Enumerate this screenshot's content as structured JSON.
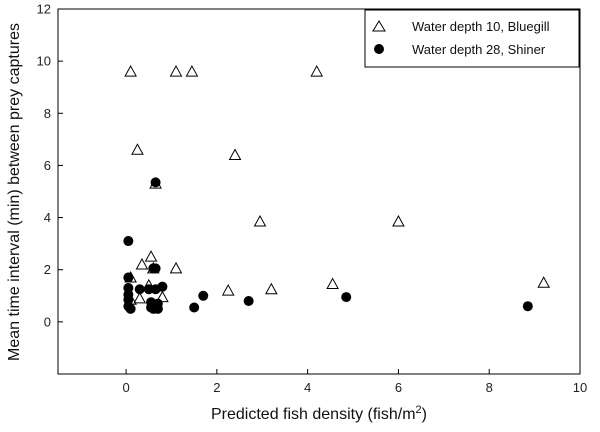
{
  "chart_data": {
    "type": "scatter",
    "title": "",
    "xlabel": "Predicted fish density (fish/m",
    "xlabel_sup": "2",
    "xlabel_close": ")",
    "ylabel": "Mean time interval (min) between prey captures",
    "xlim": [
      -1.5,
      10
    ],
    "ylim": [
      -2,
      12
    ],
    "xticks": [
      0,
      2,
      4,
      6,
      8,
      10
    ],
    "yticks": [
      0,
      2,
      4,
      6,
      8,
      10,
      12
    ],
    "grid": false,
    "legend_position": "top-right",
    "series": [
      {
        "name": "Water depth 10, Bluegill",
        "marker": "open-triangle",
        "color": "#000000",
        "points": [
          [
            0.1,
            9.6
          ],
          [
            1.1,
            9.6
          ],
          [
            1.45,
            9.6
          ],
          [
            4.2,
            9.6
          ],
          [
            0.25,
            6.6
          ],
          [
            2.4,
            6.4
          ],
          [
            0.65,
            5.3
          ],
          [
            2.95,
            3.85
          ],
          [
            6.0,
            3.85
          ],
          [
            0.55,
            2.5
          ],
          [
            0.35,
            2.2
          ],
          [
            0.6,
            2.05
          ],
          [
            1.1,
            2.05
          ],
          [
            0.1,
            1.7
          ],
          [
            0.5,
            1.4
          ],
          [
            4.55,
            1.45
          ],
          [
            9.2,
            1.5
          ],
          [
            2.25,
            1.2
          ],
          [
            3.2,
            1.25
          ],
          [
            0.8,
            0.95
          ],
          [
            0.3,
            0.9
          ],
          [
            0.1,
            0.85
          ]
        ]
      },
      {
        "name": "Water depth 28, Shiner",
        "marker": "filled-circle",
        "color": "#000000",
        "points": [
          [
            0.05,
            3.1
          ],
          [
            0.65,
            5.35
          ],
          [
            0.05,
            1.7
          ],
          [
            0.6,
            2.05
          ],
          [
            0.65,
            2.05
          ],
          [
            0.05,
            1.3
          ],
          [
            0.3,
            1.25
          ],
          [
            0.5,
            1.25
          ],
          [
            0.8,
            1.35
          ],
          [
            0.65,
            1.25
          ],
          [
            0.05,
            1.05
          ],
          [
            1.7,
            1.0
          ],
          [
            0.05,
            0.85
          ],
          [
            2.7,
            0.8
          ],
          [
            4.85,
            0.95
          ],
          [
            0.55,
            0.75
          ],
          [
            0.7,
            0.7
          ],
          [
            0.05,
            0.6
          ],
          [
            0.1,
            0.5
          ],
          [
            0.55,
            0.55
          ],
          [
            0.6,
            0.5
          ],
          [
            0.7,
            0.5
          ],
          [
            1.5,
            0.55
          ],
          [
            8.85,
            0.6
          ]
        ]
      }
    ]
  }
}
